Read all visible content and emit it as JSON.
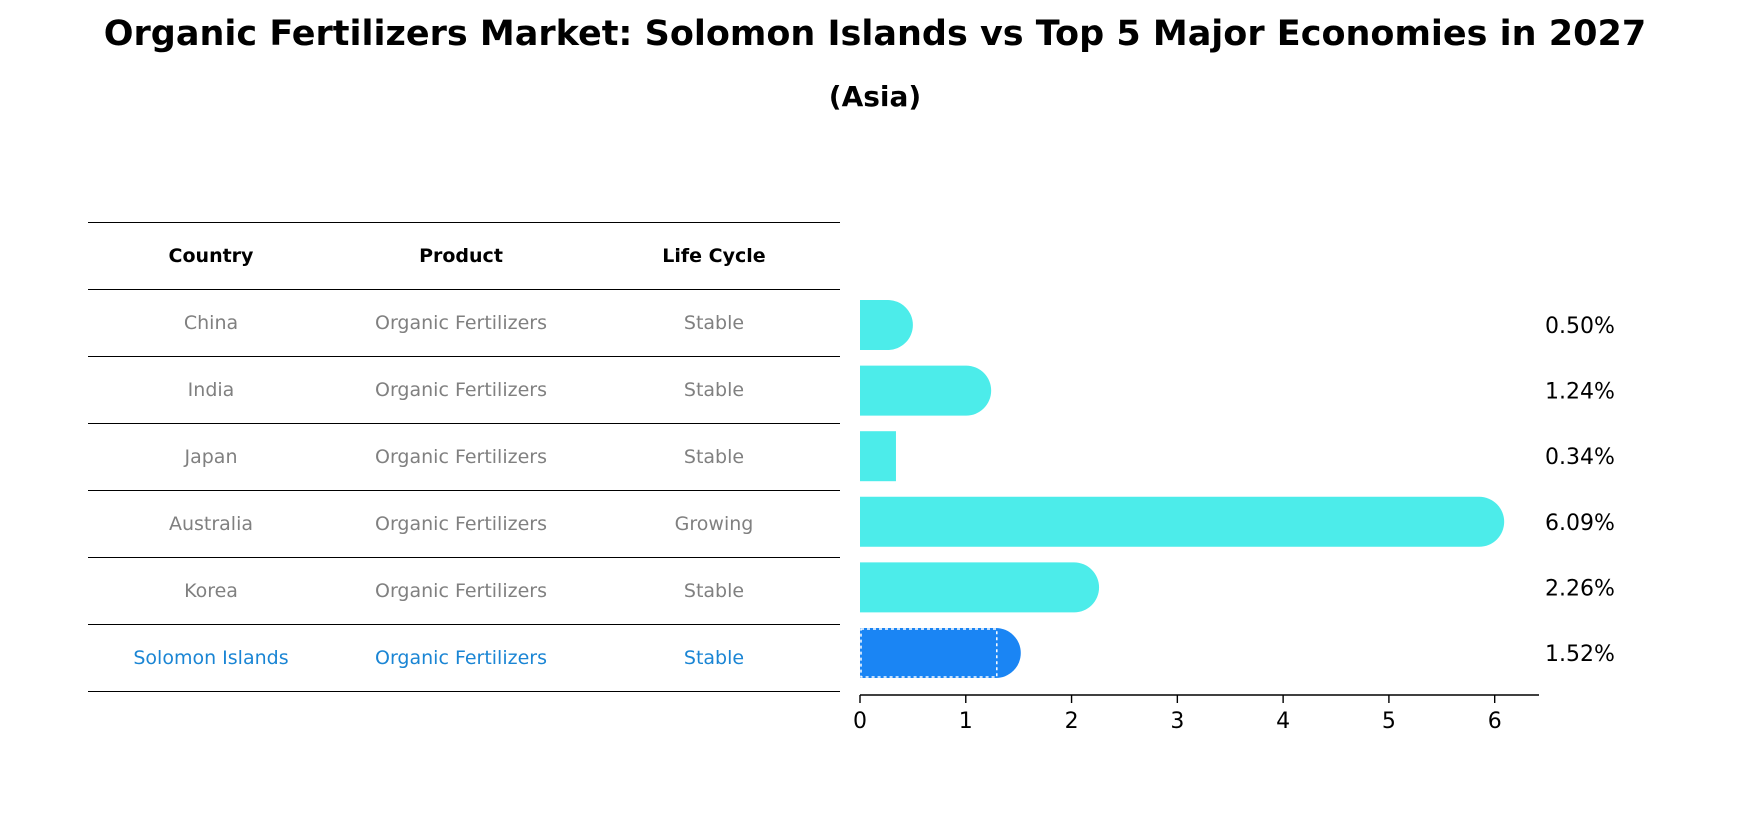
{
  "title": "Organic Fertilizers Market: Solomon Islands vs Top 5 Major Economies in 2027",
  "subtitle": "(Asia)",
  "table": {
    "headers": [
      "Country",
      "Product",
      "Life Cycle"
    ],
    "rows": [
      [
        "China",
        "Organic Fertilizers",
        "Stable"
      ],
      [
        "India",
        "Organic Fertilizers",
        "Stable"
      ],
      [
        "Japan",
        "Organic Fertilizers",
        "Stable"
      ],
      [
        "Australia",
        "Organic Fertilizers",
        "Growing"
      ],
      [
        "Korea",
        "Organic Fertilizers",
        "Stable"
      ],
      [
        "Solomon Islands",
        "Organic Fertilizers",
        "Stable"
      ]
    ]
  },
  "colors": {
    "bar": "#4cecea",
    "highlight": "#1a85f4",
    "highlight_text": "#1a85d4",
    "muted_text": "#808080"
  },
  "chart_data": {
    "type": "bar",
    "orientation": "horizontal",
    "title": "Organic Fertilizers Market: Solomon Islands vs Top 5 Major Economies in 2027",
    "subtitle": "(Asia)",
    "categories": [
      "China",
      "India",
      "Japan",
      "Australia",
      "Korea",
      "Solomon Islands"
    ],
    "values": [
      0.5,
      1.24,
      0.34,
      6.09,
      2.26,
      1.52
    ],
    "value_labels": [
      "0.50%",
      "1.24%",
      "0.34%",
      "6.09%",
      "2.26%",
      "1.52%"
    ],
    "highlight": "Solomon Islands",
    "xlim": [
      0,
      6.4
    ],
    "xticks": [
      0,
      1,
      2,
      3,
      4,
      5,
      6
    ],
    "xlabel": "",
    "ylabel": "",
    "grid": false
  }
}
